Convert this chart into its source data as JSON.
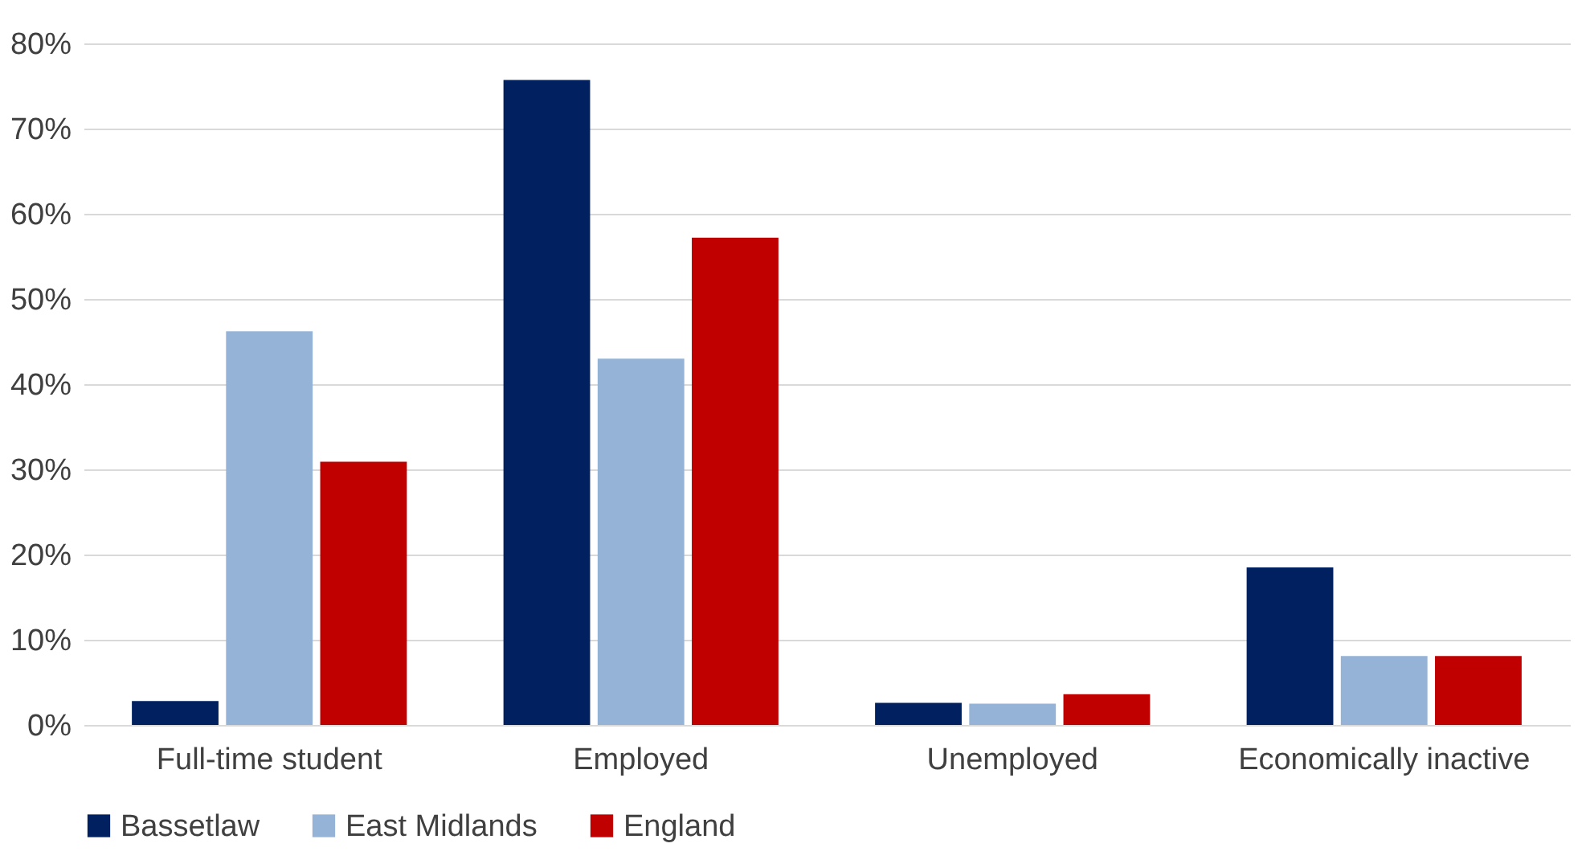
{
  "chart_data": {
    "type": "bar",
    "categories": [
      "Full-time student",
      "Employed",
      "Unemployed",
      "Economically inactive"
    ],
    "series": [
      {
        "name": "Bassetlaw",
        "color": "#002060",
        "values": [
          2.8,
          75.7,
          2.6,
          18.5
        ]
      },
      {
        "name": "East Midlands",
        "color": "#95b3d7",
        "values": [
          46.2,
          43.0,
          2.5,
          8.1
        ]
      },
      {
        "name": "England",
        "color": "#c00000",
        "values": [
          30.9,
          57.2,
          3.6,
          8.1
        ]
      }
    ],
    "ylim": [
      0,
      80
    ],
    "yticks": [
      {
        "value": 0,
        "label": "0%"
      },
      {
        "value": 10,
        "label": "10%"
      },
      {
        "value": 20,
        "label": "20%"
      },
      {
        "value": 30,
        "label": "30%"
      },
      {
        "value": 40,
        "label": "40%"
      },
      {
        "value": 50,
        "label": "50%"
      },
      {
        "value": 60,
        "label": "60%"
      },
      {
        "value": 70,
        "label": "70%"
      },
      {
        "value": 80,
        "label": "80%"
      }
    ],
    "grid": "y",
    "legend": "bottom"
  }
}
